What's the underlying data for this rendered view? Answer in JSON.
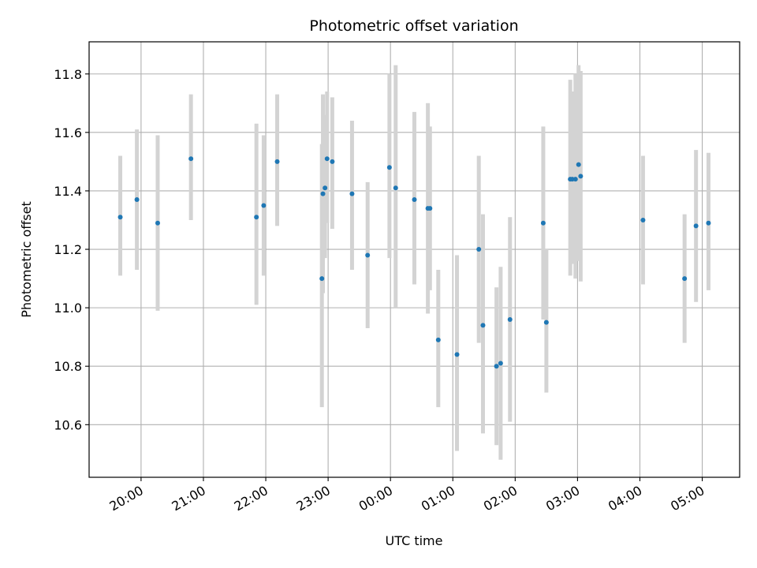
{
  "chart_data": {
    "type": "scatter",
    "title": "Photometric offset variation",
    "xlabel": "UTC time",
    "ylabel": "Photometric offset",
    "grid": true,
    "legend": "none",
    "x_unit": "UTC time (hours after 19:00 = 19:00 + hours)",
    "xlim": [
      "19:10",
      "05:36"
    ],
    "ylim": [
      10.42,
      11.91
    ],
    "x_ticks": [
      "20:00",
      "21:00",
      "22:00",
      "23:00",
      "00:00",
      "01:00",
      "02:00",
      "03:00",
      "04:00",
      "05:00"
    ],
    "y_ticks": [
      "10.6",
      "10.8",
      "11.0",
      "11.2",
      "11.4",
      "11.6",
      "11.8"
    ],
    "colors": {
      "point": "#1f77b4",
      "errorbar": "#d3d3d3",
      "grid": "#b0b0b0"
    },
    "points": [
      {
        "t": "19:40",
        "y": 11.31,
        "lo": 11.11,
        "hi": 11.52
      },
      {
        "t": "19:56",
        "y": 11.37,
        "lo": 11.13,
        "hi": 11.61
      },
      {
        "t": "20:16",
        "y": 11.29,
        "lo": 10.99,
        "hi": 11.59
      },
      {
        "t": "20:48",
        "y": 11.51,
        "lo": 11.3,
        "hi": 11.73
      },
      {
        "t": "21:51",
        "y": 11.31,
        "lo": 11.01,
        "hi": 11.63
      },
      {
        "t": "21:58",
        "y": 11.35,
        "lo": 11.11,
        "hi": 11.59
      },
      {
        "t": "22:11",
        "y": 11.5,
        "lo": 11.28,
        "hi": 11.73
      },
      {
        "t": "22:54",
        "y": 11.1,
        "lo": 10.66,
        "hi": 11.56
      },
      {
        "t": "22:55",
        "y": 11.39,
        "lo": 11.05,
        "hi": 11.73
      },
      {
        "t": "22:57",
        "y": 11.41,
        "lo": 11.17,
        "hi": 11.66
      },
      {
        "t": "22:59",
        "y": 11.51,
        "lo": 11.29,
        "hi": 11.74
      },
      {
        "t": "23:04",
        "y": 11.5,
        "lo": 11.27,
        "hi": 11.72
      },
      {
        "t": "23:23",
        "y": 11.39,
        "lo": 11.13,
        "hi": 11.64
      },
      {
        "t": "23:38",
        "y": 11.18,
        "lo": 10.93,
        "hi": 11.43
      },
      {
        "t": "23:59",
        "y": 11.48,
        "lo": 11.17,
        "hi": 11.8
      },
      {
        "t": "00:05",
        "y": 11.41,
        "lo": 11.0,
        "hi": 11.83
      },
      {
        "t": "00:23",
        "y": 11.37,
        "lo": 11.08,
        "hi": 11.67
      },
      {
        "t": "00:36",
        "y": 11.34,
        "lo": 10.98,
        "hi": 11.7
      },
      {
        "t": "00:38",
        "y": 11.34,
        "lo": 11.06,
        "hi": 11.62
      },
      {
        "t": "00:46",
        "y": 10.89,
        "lo": 10.66,
        "hi": 11.13
      },
      {
        "t": "01:04",
        "y": 10.84,
        "lo": 10.51,
        "hi": 11.18
      },
      {
        "t": "01:25",
        "y": 11.2,
        "lo": 10.88,
        "hi": 11.52
      },
      {
        "t": "01:29",
        "y": 10.94,
        "lo": 10.57,
        "hi": 11.32
      },
      {
        "t": "01:42",
        "y": 10.8,
        "lo": 10.53,
        "hi": 11.07
      },
      {
        "t": "01:46",
        "y": 10.81,
        "lo": 10.48,
        "hi": 11.14
      },
      {
        "t": "01:55",
        "y": 10.96,
        "lo": 10.61,
        "hi": 11.31
      },
      {
        "t": "02:27",
        "y": 11.29,
        "lo": 10.96,
        "hi": 11.62
      },
      {
        "t": "02:30",
        "y": 10.95,
        "lo": 10.71,
        "hi": 11.2
      },
      {
        "t": "02:53",
        "y": 11.44,
        "lo": 11.11,
        "hi": 11.78
      },
      {
        "t": "02:55",
        "y": 11.44,
        "lo": 11.15,
        "hi": 11.74
      },
      {
        "t": "02:58",
        "y": 11.44,
        "lo": 11.1,
        "hi": 11.8
      },
      {
        "t": "03:01",
        "y": 11.49,
        "lo": 11.16,
        "hi": 11.83
      },
      {
        "t": "03:03",
        "y": 11.45,
        "lo": 11.09,
        "hi": 11.81
      },
      {
        "t": "04:03",
        "y": 11.3,
        "lo": 11.08,
        "hi": 11.52
      },
      {
        "t": "04:43",
        "y": 11.1,
        "lo": 10.88,
        "hi": 11.32
      },
      {
        "t": "04:54",
        "y": 11.28,
        "lo": 11.02,
        "hi": 11.54
      },
      {
        "t": "05:06",
        "y": 11.29,
        "lo": 11.06,
        "hi": 11.53
      }
    ]
  }
}
